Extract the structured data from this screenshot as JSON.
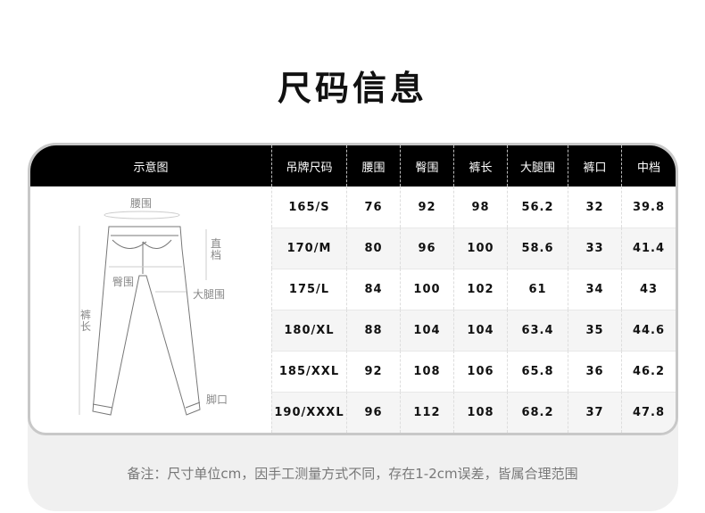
{
  "title": "尺码信息",
  "table": {
    "diagram_header": "示意图",
    "headers": [
      "吊牌尺码",
      "腰围",
      "臀围",
      "裤长",
      "大腿围",
      "裤口",
      "中档"
    ],
    "rows": [
      [
        "165/S",
        "76",
        "92",
        "98",
        "56.2",
        "32",
        "39.8"
      ],
      [
        "170/M",
        "80",
        "96",
        "100",
        "58.6",
        "33",
        "41.4"
      ],
      [
        "175/L",
        "84",
        "100",
        "102",
        "61",
        "34",
        "43"
      ],
      [
        "180/XL",
        "88",
        "104",
        "104",
        "63.4",
        "35",
        "44.6"
      ],
      [
        "185/XXL",
        "92",
        "108",
        "106",
        "65.8",
        "36",
        "46.2"
      ],
      [
        "190/XXXL",
        "96",
        "112",
        "108",
        "68.2",
        "37",
        "47.8"
      ]
    ]
  },
  "diagram_labels": {
    "waist": "腰围",
    "rise": "直档",
    "hip": "臀围",
    "thigh": "大腿围",
    "length": "裤长",
    "hem": "脚口"
  },
  "note": "备注：尺寸单位cm，因手工测量方式不同，存在1-2cm误差，皆属合理范围"
}
